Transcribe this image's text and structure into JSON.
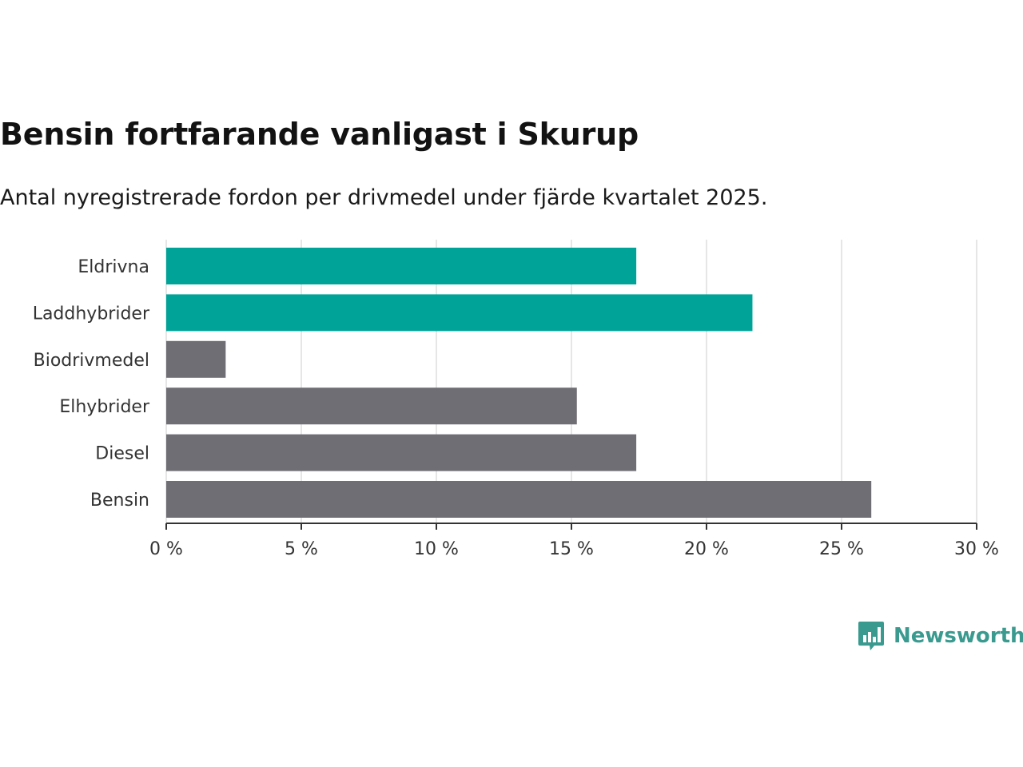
{
  "title": "Bensin fortfarande vanligast i Skurup",
  "subtitle": "Antal nyregistrerade fordon per drivmedel under fjärde kvartalet 2025.",
  "logo": {
    "text": "Newsworthy",
    "icon": "bar-chart-speech-bubble-icon",
    "color": "#3a9a8f"
  },
  "colors": {
    "highlight": "#00a398",
    "default": "#6f6e74",
    "grid": "#dddddd",
    "axis": "#333333"
  },
  "chart_data": {
    "type": "bar",
    "orientation": "horizontal",
    "title": "Bensin fortfarande vanligast i Skurup",
    "subtitle": "Antal nyregistrerade fordon per drivmedel under fjärde kvartalet 2025.",
    "xlabel": "",
    "ylabel": "",
    "unit": "%",
    "xlim": [
      0,
      30
    ],
    "grid": true,
    "xticks": [
      0,
      5,
      10,
      15,
      20,
      25,
      30
    ],
    "tick_labels": [
      "0 %",
      "5 %",
      "10 %",
      "15 %",
      "20 %",
      "25 %",
      "30 %"
    ],
    "categories": [
      "Eldrivna",
      "Laddhybrider",
      "Biodrivmedel",
      "Elhybrider",
      "Diesel",
      "Bensin"
    ],
    "values": [
      17.4,
      21.7,
      2.2,
      15.2,
      17.4,
      26.1
    ],
    "highlighted": [
      true,
      true,
      false,
      false,
      false,
      false
    ]
  }
}
